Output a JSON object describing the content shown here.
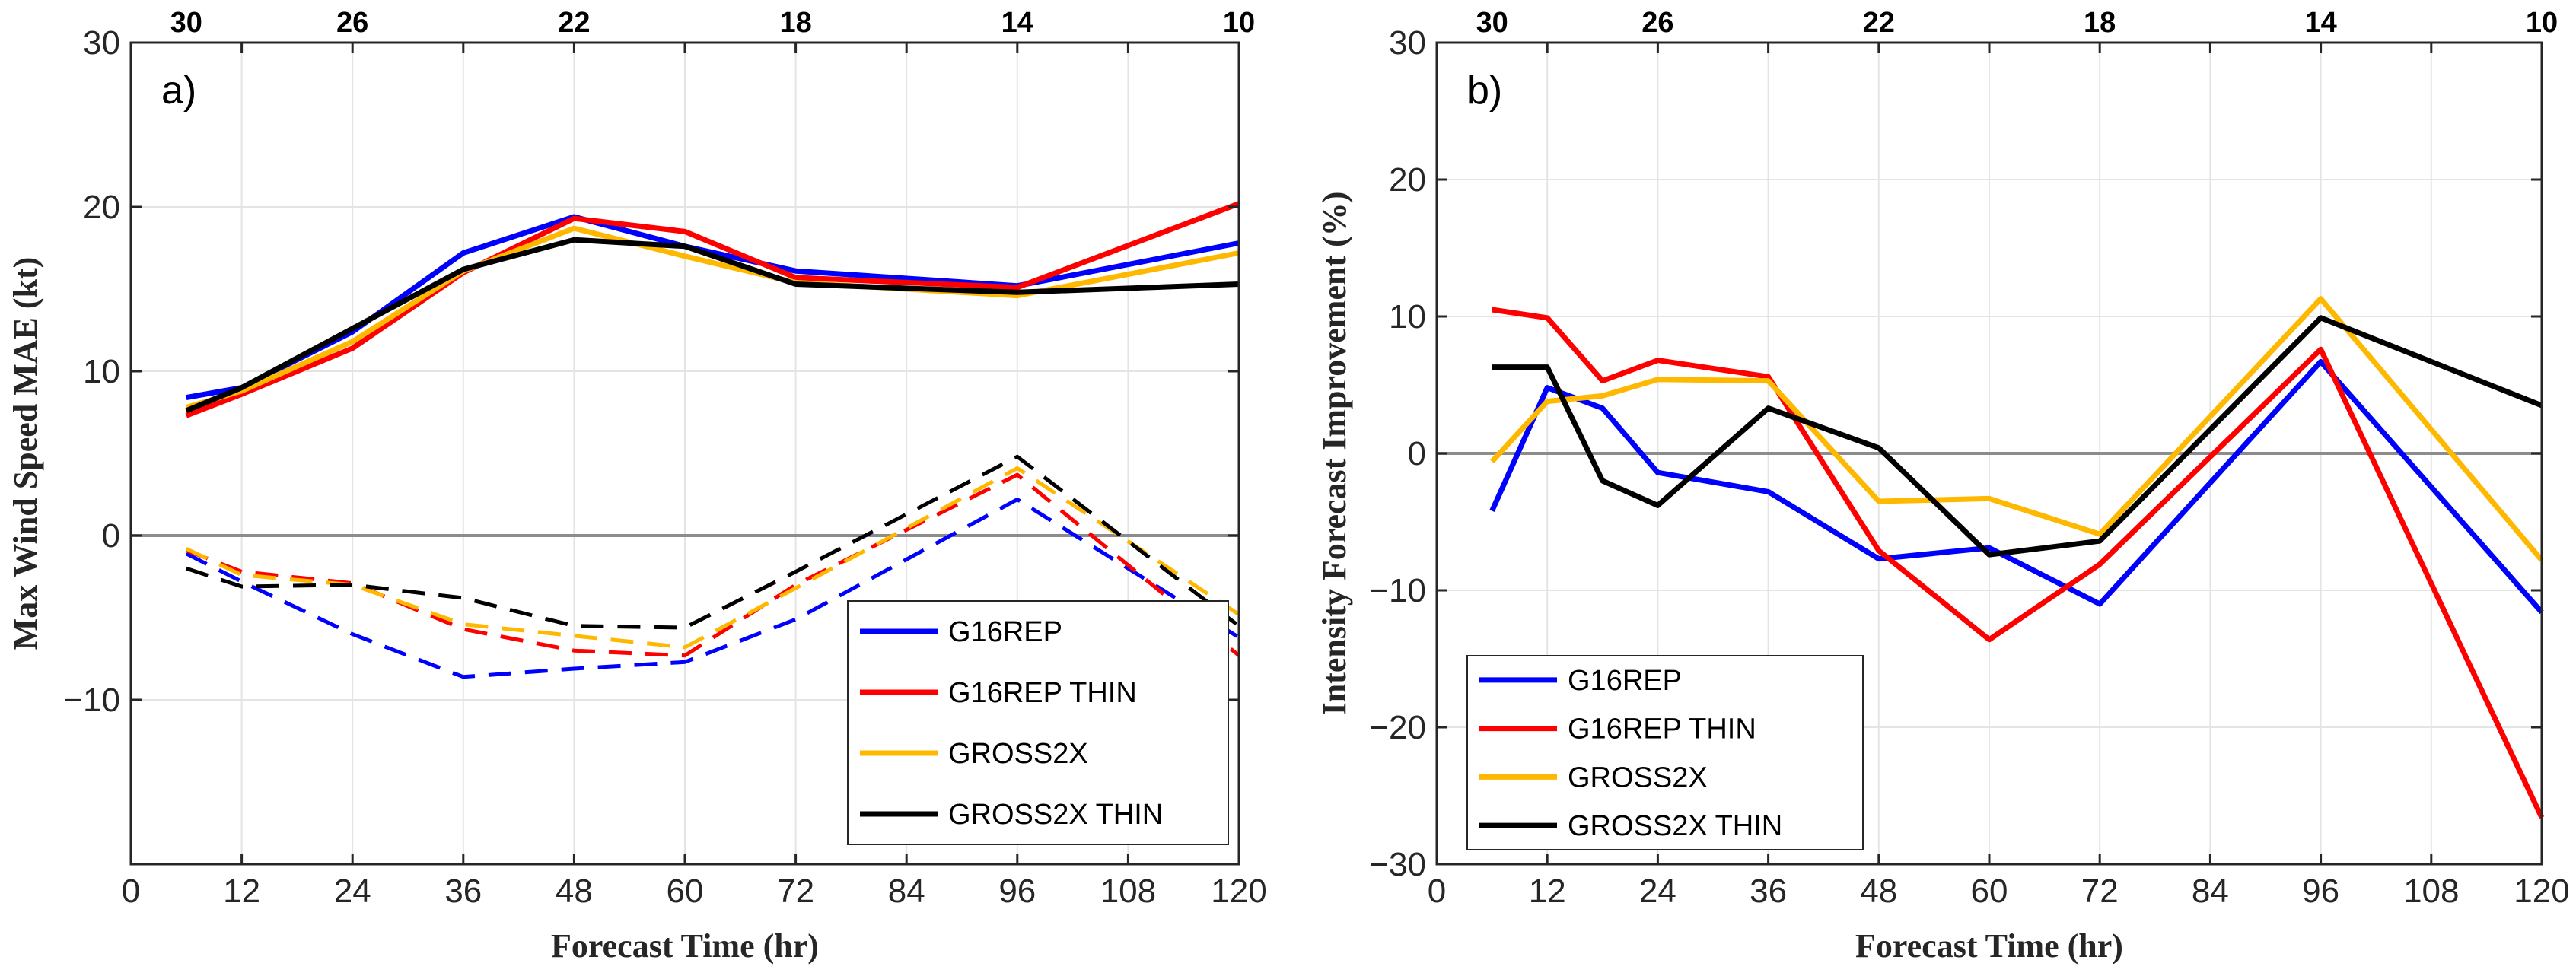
{
  "chart_data": [
    {
      "type": "line",
      "panel_label": "a)",
      "xlabel": "Forecast Time (hr)",
      "ylabel": "Max Wind Speed MAE (kt)",
      "xlim": [
        0,
        120
      ],
      "ylim": [
        -20,
        30
      ],
      "x_ticks": [
        0,
        12,
        24,
        36,
        48,
        60,
        72,
        84,
        96,
        108,
        120
      ],
      "y_ticks": [
        -10,
        0,
        10,
        20,
        30
      ],
      "y_tick_labels": [
        "−10",
        "0",
        "10",
        "20",
        "30"
      ],
      "top_ticks": [
        {
          "x": 6,
          "label": "30"
        },
        {
          "x": 24,
          "label": "26"
        },
        {
          "x": 48,
          "label": "22"
        },
        {
          "x": 72,
          "label": "18"
        },
        {
          "x": 96,
          "label": "14"
        },
        {
          "x": 120,
          "label": "10"
        }
      ],
      "grid": true,
      "zero_line": true,
      "legend": {
        "placement": "bottom-right",
        "entries": [
          "G16REP",
          "G16REP THIN",
          "GROSS2X",
          "GROSS2X THIN"
        ]
      },
      "series": [
        {
          "name": "G16REP",
          "style": "solid",
          "color": "#0000FF",
          "x": [
            6,
            12,
            24,
            36,
            48,
            60,
            72,
            96,
            120
          ],
          "values": [
            8.4,
            9.0,
            12.4,
            17.2,
            19.4,
            17.6,
            16.1,
            15.2,
            17.8
          ]
        },
        {
          "name": "G16REP THIN",
          "style": "solid",
          "color": "#FF0000",
          "x": [
            6,
            12,
            24,
            36,
            48,
            60,
            72,
            96,
            120
          ],
          "values": [
            7.3,
            8.6,
            11.4,
            16.0,
            19.3,
            18.5,
            15.7,
            15.1,
            20.2
          ]
        },
        {
          "name": "GROSS2X",
          "style": "solid",
          "color": "#FFB800",
          "x": [
            6,
            12,
            24,
            36,
            48,
            60,
            72,
            96,
            120
          ],
          "values": [
            7.8,
            8.8,
            11.8,
            16.1,
            18.7,
            17.0,
            15.4,
            14.6,
            17.2
          ]
        },
        {
          "name": "GROSS2X THIN",
          "style": "solid",
          "color": "#000000",
          "x": [
            6,
            12,
            24,
            36,
            48,
            60,
            72,
            96,
            120
          ],
          "values": [
            7.6,
            9.0,
            12.6,
            16.2,
            18.0,
            17.6,
            15.3,
            14.8,
            15.3
          ]
        },
        {
          "name": "G16REP (improvement)",
          "style": "dashed",
          "color": "#0000FF",
          "x": [
            6,
            12,
            24,
            36,
            48,
            60,
            72,
            96,
            120
          ],
          "values": [
            -1.1,
            -2.8,
            -6.0,
            -8.6,
            -8.1,
            -7.7,
            -5.1,
            2.2,
            -6.2
          ]
        },
        {
          "name": "G16REP THIN (improvement)",
          "style": "dashed",
          "color": "#FF0000",
          "x": [
            6,
            12,
            24,
            36,
            48,
            60,
            72,
            96,
            120
          ],
          "values": [
            -0.9,
            -2.2,
            -2.9,
            -5.7,
            -7.0,
            -7.3,
            -3.0,
            3.7,
            -7.3
          ]
        },
        {
          "name": "GROSS2X (improvement)",
          "style": "dashed",
          "color": "#FFB800",
          "x": [
            6,
            12,
            24,
            36,
            48,
            60,
            72,
            96,
            120
          ],
          "values": [
            -0.8,
            -2.4,
            -3.0,
            -5.4,
            -6.1,
            -6.8,
            -3.2,
            4.1,
            -4.8
          ]
        },
        {
          "name": "GROSS2X THIN (improvement)",
          "style": "dashed",
          "color": "#000000",
          "x": [
            6,
            12,
            24,
            36,
            48,
            60,
            72,
            96,
            120
          ],
          "values": [
            -2.0,
            -3.1,
            -3.0,
            -3.8,
            -5.5,
            -5.6,
            -2.2,
            4.8,
            -5.5
          ]
        }
      ]
    },
    {
      "type": "line",
      "panel_label": "b)",
      "xlabel": "Forecast Time (hr)",
      "ylabel": "Intensity Forecast Improvement (%)",
      "xlim": [
        0,
        120
      ],
      "ylim": [
        -30,
        30
      ],
      "x_ticks": [
        0,
        12,
        24,
        36,
        48,
        60,
        72,
        84,
        96,
        108,
        120
      ],
      "y_ticks": [
        -30,
        -20,
        -10,
        0,
        10,
        20,
        30
      ],
      "y_tick_labels": [
        "−30",
        "−20",
        "−10",
        "0",
        "10",
        "20",
        "30"
      ],
      "top_ticks": [
        {
          "x": 6,
          "label": "30"
        },
        {
          "x": 24,
          "label": "26"
        },
        {
          "x": 48,
          "label": "22"
        },
        {
          "x": 72,
          "label": "18"
        },
        {
          "x": 96,
          "label": "14"
        },
        {
          "x": 120,
          "label": "10"
        }
      ],
      "grid": true,
      "zero_line": true,
      "legend": {
        "placement": "bottom-left",
        "entries": [
          "G16REP",
          "G16REP THIN",
          "GROSS2X",
          "GROSS2X THIN"
        ]
      },
      "series": [
        {
          "name": "G16REP",
          "style": "solid",
          "color": "#0000FF",
          "x": [
            6,
            12,
            18,
            24,
            36,
            48,
            60,
            72,
            96,
            120
          ],
          "values": [
            -4.2,
            4.8,
            3.3,
            -1.4,
            -2.8,
            -7.7,
            -6.9,
            -11.0,
            6.7,
            -11.6
          ]
        },
        {
          "name": "G16REP THIN",
          "style": "solid",
          "color": "#FF0000",
          "x": [
            6,
            12,
            18,
            24,
            36,
            48,
            60,
            72,
            96,
            120
          ],
          "values": [
            10.5,
            9.9,
            5.3,
            6.8,
            5.6,
            -7.1,
            -13.6,
            -8.1,
            7.6,
            -26.6
          ]
        },
        {
          "name": "GROSS2X",
          "style": "solid",
          "color": "#FFB800",
          "x": [
            6,
            12,
            18,
            24,
            36,
            48,
            60,
            72,
            96,
            120
          ],
          "values": [
            -0.6,
            3.8,
            4.2,
            5.4,
            5.3,
            -3.5,
            -3.3,
            -5.9,
            11.3,
            -7.8
          ]
        },
        {
          "name": "GROSS2X THIN",
          "style": "solid",
          "color": "#000000",
          "x": [
            6,
            12,
            18,
            24,
            36,
            48,
            60,
            72,
            96,
            120
          ],
          "values": [
            6.3,
            6.3,
            -2.0,
            -3.8,
            3.3,
            0.4,
            -7.4,
            -6.4,
            9.9,
            3.5
          ]
        }
      ]
    }
  ]
}
